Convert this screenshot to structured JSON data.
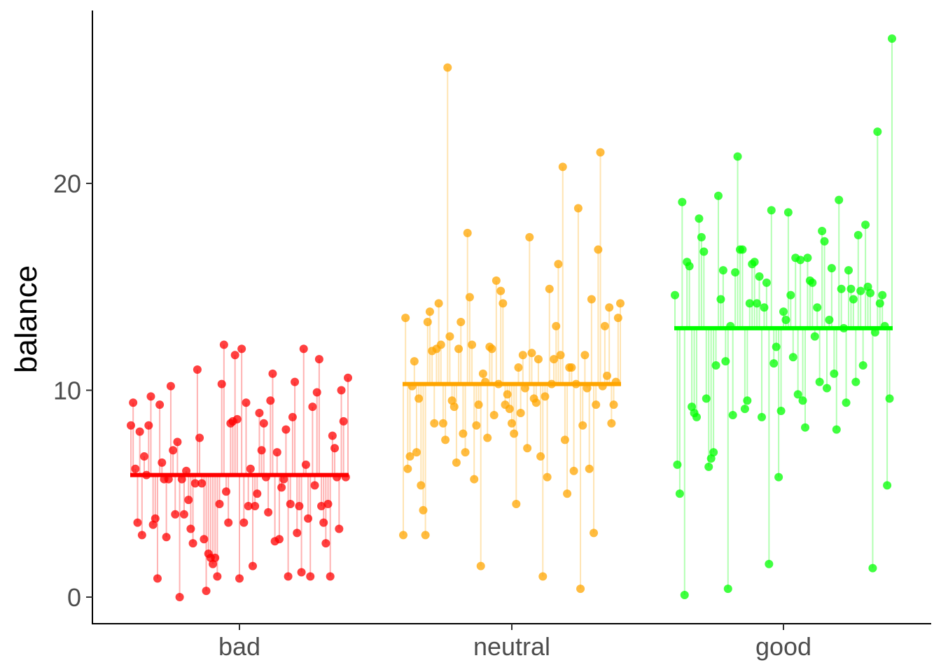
{
  "chart_data": {
    "type": "scatter",
    "title": "",
    "xlabel": "",
    "ylabel": "balance",
    "ylim": [
      -1.3,
      28.2
    ],
    "y_ticks": [
      0,
      10,
      20
    ],
    "grid": false,
    "legend": "none",
    "categories": [
      "bad",
      "neutral",
      "good"
    ],
    "series": [
      {
        "category": "bad",
        "color": "#ff0000",
        "mean": 5.9,
        "values": [
          8.3,
          9.4,
          6.2,
          3.6,
          8.0,
          3.0,
          6.8,
          5.9,
          8.3,
          9.7,
          3.5,
          3.8,
          0.9,
          9.3,
          6.5,
          5.7,
          2.9,
          5.7,
          10.2,
          7.1,
          4.0,
          7.5,
          0.0,
          5.7,
          4.0,
          6.1,
          4.7,
          3.3,
          2.6,
          5.5,
          11.0,
          7.7,
          5.5,
          2.8,
          0.3,
          2.1,
          1.9,
          1.6,
          1.9,
          1.0,
          4.5,
          10.3,
          12.2,
          5.1,
          3.6,
          8.4,
          8.5,
          11.7,
          8.6,
          0.9,
          12.0,
          3.6,
          9.4,
          4.4,
          6.2,
          1.5,
          4.4,
          5.0,
          8.9,
          7.1,
          8.4,
          5.8,
          4.1,
          9.5,
          10.8,
          2.7,
          7.0,
          2.8,
          5.3,
          5.7,
          8.1,
          1.0,
          4.5,
          8.7,
          10.4,
          3.1,
          4.4,
          1.2,
          12.0,
          6.4,
          3.8,
          1.0,
          9.2,
          5.4,
          9.9,
          11.5,
          4.4,
          3.6,
          2.6,
          4.5,
          1.0,
          7.8,
          7.2,
          5.8,
          3.3,
          10.0,
          8.5,
          5.8,
          10.6
        ]
      },
      {
        "category": "neutral",
        "color": "#ffa500",
        "mean": 10.3,
        "values": [
          3.0,
          13.5,
          6.2,
          6.8,
          10.2,
          11.4,
          7.0,
          9.6,
          5.4,
          4.2,
          3.0,
          13.3,
          13.8,
          11.9,
          8.4,
          12.0,
          14.2,
          12.2,
          8.4,
          7.6,
          25.6,
          12.6,
          9.5,
          9.2,
          6.5,
          12.0,
          13.3,
          7.9,
          7.0,
          17.6,
          14.5,
          12.2,
          5.7,
          8.3,
          9.3,
          1.5,
          10.8,
          10.4,
          7.7,
          12.1,
          12.0,
          8.8,
          15.3,
          10.3,
          14.8,
          14.2,
          9.3,
          9.8,
          9.1,
          8.4,
          7.9,
          4.5,
          11.1,
          8.9,
          11.7,
          10.1,
          7.2,
          17.4,
          11.8,
          9.6,
          9.4,
          11.5,
          6.8,
          1.0,
          9.7,
          5.8,
          14.9,
          10.3,
          11.5,
          13.1,
          16.1,
          11.7,
          20.8,
          7.6,
          5.0,
          11.1,
          11.1,
          6.1,
          10.3,
          18.8,
          0.4,
          8.3,
          11.7,
          10.1,
          6.2,
          14.4,
          3.1,
          9.3,
          16.8,
          21.5,
          10.2,
          13.1,
          10.7,
          14.0,
          8.4,
          9.3,
          10.4,
          13.5,
          14.2
        ]
      },
      {
        "category": "good",
        "color": "#00ff00",
        "mean": 13.0,
        "values": [
          14.6,
          6.4,
          5.0,
          19.1,
          0.1,
          16.2,
          16.0,
          9.2,
          8.9,
          8.7,
          18.3,
          17.4,
          16.7,
          9.6,
          6.3,
          6.7,
          7.0,
          11.2,
          19.4,
          14.4,
          15.8,
          11.4,
          0.4,
          13.1,
          8.8,
          15.7,
          21.3,
          16.8,
          16.8,
          9.1,
          9.5,
          14.2,
          16.1,
          16.2,
          14.2,
          15.5,
          8.7,
          14.0,
          15.2,
          1.6,
          18.7,
          11.3,
          12.1,
          5.8,
          9.0,
          13.8,
          13.4,
          18.6,
          14.6,
          11.6,
          16.4,
          9.8,
          16.3,
          9.5,
          8.2,
          16.4,
          15.3,
          15.2,
          12.6,
          14.0,
          10.4,
          17.7,
          17.2,
          10.1,
          13.4,
          15.9,
          10.8,
          8.1,
          19.2,
          14.9,
          13.0,
          9.4,
          15.8,
          14.9,
          14.4,
          10.4,
          17.5,
          14.8,
          11.2,
          18.0,
          15.0,
          14.7,
          1.4,
          12.8,
          22.5,
          14.2,
          14.6,
          13.1,
          5.4,
          9.6,
          27.0
        ]
      }
    ]
  }
}
